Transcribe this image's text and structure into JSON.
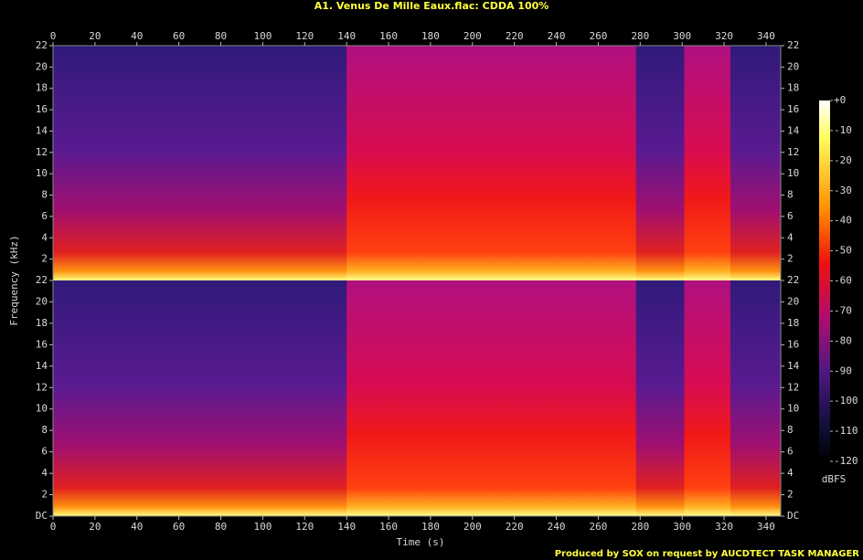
{
  "chart_data": {
    "type": "spectrogram",
    "title": "A1. Venus De Mille Eaux.flac: CDDA 100%",
    "x_label": "Time (s)",
    "y_label": "Frequency (kHz)",
    "xlim": [
      0,
      347
    ],
    "xticks": [
      0,
      20,
      40,
      60,
      80,
      100,
      120,
      140,
      160,
      180,
      200,
      220,
      240,
      260,
      280,
      300,
      320,
      340
    ],
    "channels": [
      {
        "ylim": [
          0,
          22
        ],
        "yticks": [
          2,
          4,
          6,
          8,
          10,
          12,
          14,
          16,
          18,
          20,
          22
        ]
      },
      {
        "ylim": [
          0,
          22
        ],
        "yticks": [
          {
            "value": 0,
            "label": "DC"
          },
          2,
          4,
          6,
          8,
          10,
          12,
          14,
          16,
          18,
          20,
          22
        ]
      }
    ],
    "colorbar": {
      "label": "dBFS",
      "lim": [
        -120,
        0
      ],
      "ticks": [
        {
          "value": 0,
          "label": "+0"
        },
        -10,
        -20,
        -30,
        -40,
        -50,
        -60,
        -70,
        -80,
        -90,
        -100,
        -110,
        -120
      ]
    },
    "loud_sections": [
      [
        140,
        278
      ],
      [
        301,
        323
      ]
    ]
  },
  "footer": "Produced by SOX on request by AUCDTECT TASK MANAGER"
}
